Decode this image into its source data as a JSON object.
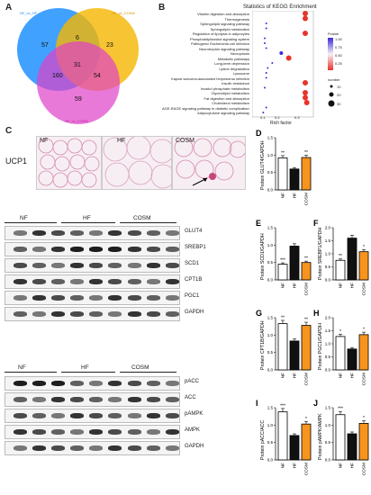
{
  "panel_a": {
    "letter": "A",
    "sets": [
      "NF_vs_HF",
      "HF_vs_COSM",
      "NF_vs_COSM"
    ],
    "counts": {
      "only_left": "57",
      "only_right": "23",
      "left_right": "6",
      "center": "31",
      "left_bottom": "160",
      "right_bottom": "54",
      "only_bottom": "59"
    },
    "colors": {
      "left": "#1e90ff",
      "right": "#f5b700",
      "bottom": "#e040c8"
    }
  },
  "panel_b": {
    "letter": "B",
    "title": "Statistics of KEGG Enrichment",
    "pathways": [
      "Vitamin digestion and absorption",
      "Thermogenesis",
      "Sphingolipid signaling pathway",
      "Sphingolipid metabolism",
      "Regulation of lipolysis in adipocytes",
      "Phosphatidylinositol signaling system",
      "Pathogenic Escherichia coli infection",
      "Neurotrophin signaling pathway",
      "Necroptosis",
      "Metabolic pathways",
      "Long-term depression",
      "Lysine degradation",
      "Lysosome",
      "Kaposi sarcoma-associated herpesvirus infection",
      "Insulin resistance",
      "Inositol phosphate metabolism",
      "Glycerolipid metabolism",
      "Fat digestion and absorption",
      "Cholesterol metabolism",
      "AGE-RAGE signaling pathway in diabetic complications",
      "Adipocytokine signaling pathway"
    ],
    "xlabel": "Rich factor",
    "xticks": [
      "0.1",
      "0.2",
      "0.3"
    ],
    "legend_pvalue_title": "Pvalue",
    "legend_pvalue_ticks": [
      "1.00",
      "0.75",
      "0.50",
      "0.25"
    ],
    "legend_number_title": "number",
    "legend_number_ticks": [
      "10",
      "20",
      "30"
    ]
  },
  "panel_c": {
    "letter": "C",
    "row_label": "UCP1",
    "groups": [
      "NF",
      "HF",
      "COSM"
    ]
  },
  "blots": {
    "set1": {
      "groups": [
        "NF",
        "HF",
        "COSM"
      ],
      "rows": [
        "GLUT4",
        "SREBP1",
        "SCD1",
        "CPT1B",
        "PGC1",
        "GAPDH"
      ]
    },
    "set2": {
      "groups": [
        "NF",
        "HF",
        "COSM"
      ],
      "rows": [
        "pACC",
        "ACC",
        "pAMPK",
        "AMPK",
        "GAPDH"
      ]
    }
  },
  "bar_panels": [
    {
      "letter": "D",
      "ylabel": "Protein GLUT4/GAPDH",
      "yticks": [
        "0.0",
        "0.5",
        "1.0",
        "1.5"
      ],
      "ymax": 1.5,
      "values": [
        0.92,
        0.6,
        0.93
      ],
      "sig": [
        "**",
        "",
        "**"
      ]
    },
    {
      "letter": "E",
      "ylabel": "Protein SCD1/GAPDH",
      "yticks": [
        "0.0",
        "0.5",
        "1.0",
        "1.5"
      ],
      "ymax": 1.5,
      "values": [
        0.45,
        0.97,
        0.5
      ],
      "sig": [
        "***",
        "",
        "**"
      ]
    },
    {
      "letter": "F",
      "ylabel": "Protein SREBP1/GAPDH",
      "yticks": [
        "0.0",
        "0.5",
        "1.0",
        "1.5",
        "2.0"
      ],
      "ymax": 2.0,
      "values": [
        0.75,
        1.6,
        1.08
      ],
      "sig": [
        "**",
        "",
        "*"
      ]
    },
    {
      "letter": "G",
      "ylabel": "Protein CPT1B/GAPDH",
      "yticks": [
        "0.0",
        "0.5",
        "1.0",
        "1.5"
      ],
      "ymax": 1.5,
      "values": [
        1.33,
        0.83,
        1.28
      ],
      "sig": [
        "**",
        "",
        "**"
      ]
    },
    {
      "letter": "H",
      "ylabel": "Protein PGC1/GAPDH",
      "yticks": [
        "0.0",
        "0.5",
        "1.0",
        "1.5",
        "2.0"
      ],
      "ymax": 2.0,
      "values": [
        1.28,
        0.8,
        1.35
      ],
      "sig": [
        "*",
        "",
        "*"
      ]
    },
    {
      "letter": "I",
      "ylabel": "Protein pACC/ACC",
      "yticks": [
        "0.0",
        "0.5",
        "1.0",
        "1.5"
      ],
      "ymax": 1.5,
      "values": [
        1.38,
        0.7,
        1.03
      ],
      "sig": [
        "***",
        "",
        "*"
      ]
    },
    {
      "letter": "J",
      "ylabel": "Protein pAMPK/AMPK",
      "yticks": [
        "0.0",
        "0.5",
        "1.0",
        "1.5"
      ],
      "ymax": 1.5,
      "values": [
        1.3,
        0.75,
        1.05
      ],
      "sig": [
        "***",
        "",
        "*"
      ]
    }
  ],
  "bar_categories": [
    "NF",
    "HF",
    "COSM"
  ],
  "bar_colors": [
    "#ffffff",
    "#111111",
    "#f7941d"
  ],
  "chart_data": [
    {
      "type": "bar",
      "categories": [
        "NF",
        "HF",
        "COSM"
      ],
      "values": [
        0.92,
        0.6,
        0.93
      ],
      "ylabel": "Protein GLUT4/GAPDH",
      "ylim": [
        0,
        1.5
      ]
    },
    {
      "type": "bar",
      "categories": [
        "NF",
        "HF",
        "COSM"
      ],
      "values": [
        0.45,
        0.97,
        0.5
      ],
      "ylabel": "Protein SCD1/GAPDH",
      "ylim": [
        0,
        1.5
      ]
    },
    {
      "type": "bar",
      "categories": [
        "NF",
        "HF",
        "COSM"
      ],
      "values": [
        0.75,
        1.6,
        1.08
      ],
      "ylabel": "Protein SREBP1/GAPDH",
      "ylim": [
        0,
        2.0
      ]
    },
    {
      "type": "bar",
      "categories": [
        "NF",
        "HF",
        "COSM"
      ],
      "values": [
        1.33,
        0.83,
        1.28
      ],
      "ylabel": "Protein CPT1B/GAPDH",
      "ylim": [
        0,
        1.5
      ]
    },
    {
      "type": "bar",
      "categories": [
        "NF",
        "HF",
        "COSM"
      ],
      "values": [
        1.28,
        0.8,
        1.35
      ],
      "ylabel": "Protein PGC1/GAPDH",
      "ylim": [
        0,
        2.0
      ]
    },
    {
      "type": "bar",
      "categories": [
        "NF",
        "HF",
        "COSM"
      ],
      "values": [
        1.38,
        0.7,
        1.03
      ],
      "ylabel": "Protein pACC/ACC",
      "ylim": [
        0,
        1.5
      ]
    },
    {
      "type": "bar",
      "categories": [
        "NF",
        "HF",
        "COSM"
      ],
      "values": [
        1.3,
        0.75,
        1.05
      ],
      "ylabel": "Protein pAMPK/AMPK",
      "ylim": [
        0,
        1.5
      ]
    }
  ]
}
